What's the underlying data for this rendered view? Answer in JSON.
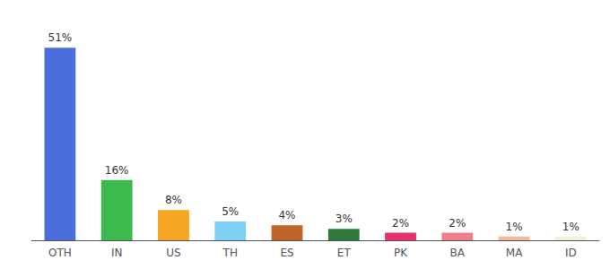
{
  "chart_data": {
    "type": "bar",
    "categories": [
      "OTH",
      "IN",
      "US",
      "TH",
      "ES",
      "ET",
      "PK",
      "BA",
      "MA",
      "ID"
    ],
    "values": [
      51,
      16,
      8,
      5,
      4,
      3,
      2,
      2,
      1,
      1
    ],
    "value_labels": [
      "51%",
      "16%",
      "8%",
      "5%",
      "4%",
      "3%",
      "2%",
      "2%",
      "1%",
      "1%"
    ],
    "colors": [
      "#4a6fdc",
      "#3dba4e",
      "#f5a623",
      "#7ecff5",
      "#c0622a",
      "#2d7a3a",
      "#e8306e",
      "#f08090",
      "#f5b8a0",
      "#f5f0d8"
    ],
    "data_labels": true,
    "ylim": [
      0,
      57
    ],
    "tick_labels": "x",
    "grid": false
  }
}
